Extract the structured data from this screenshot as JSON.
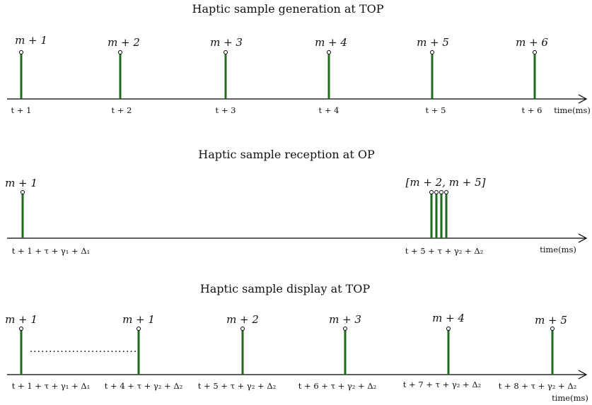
{
  "panels": [
    {
      "title": "Haptic sample generation at TOP",
      "samples": [
        "m + 1",
        "m + 2",
        "m + 3",
        "m + 4",
        "m + 5",
        "m + 6"
      ],
      "ticks": [
        "t + 1",
        "t + 2",
        "t + 3",
        "t + 4",
        "t + 5",
        "t + 6"
      ],
      "axis_label": "time(ms)"
    },
    {
      "title": "Haptic sample reception at OP",
      "samples": [
        "m + 1",
        "[m + 2, m + 5]"
      ],
      "ticks": [
        "t + 1 + τ + γ₁ + Δ₁",
        "t + 5 + τ + γ₂ + Δ₂"
      ],
      "axis_label": "time(ms)"
    },
    {
      "title": "Haptic sample display at TOP",
      "samples": [
        "m + 1",
        "m + 1",
        "m + 2",
        "m + 3",
        "m + 4",
        "m + 5"
      ],
      "ticks": [
        "t + 1 + τ + γ₁ + Δ₁",
        "t + 4 + τ + γ₂ + Δ₂",
        "t + 5 + τ + γ₂ + Δ₂",
        "t + 6 + τ + γ₂ + Δ₂",
        "t + 7 + τ + γ₂ + Δ₂",
        "t + 8 + τ + γ₂ + Δ₂"
      ],
      "axis_label": "time(ms)",
      "gap_marker": "............................"
    }
  ],
  "colors": {
    "stem": "#1e6b1e",
    "axis": "#000000"
  }
}
